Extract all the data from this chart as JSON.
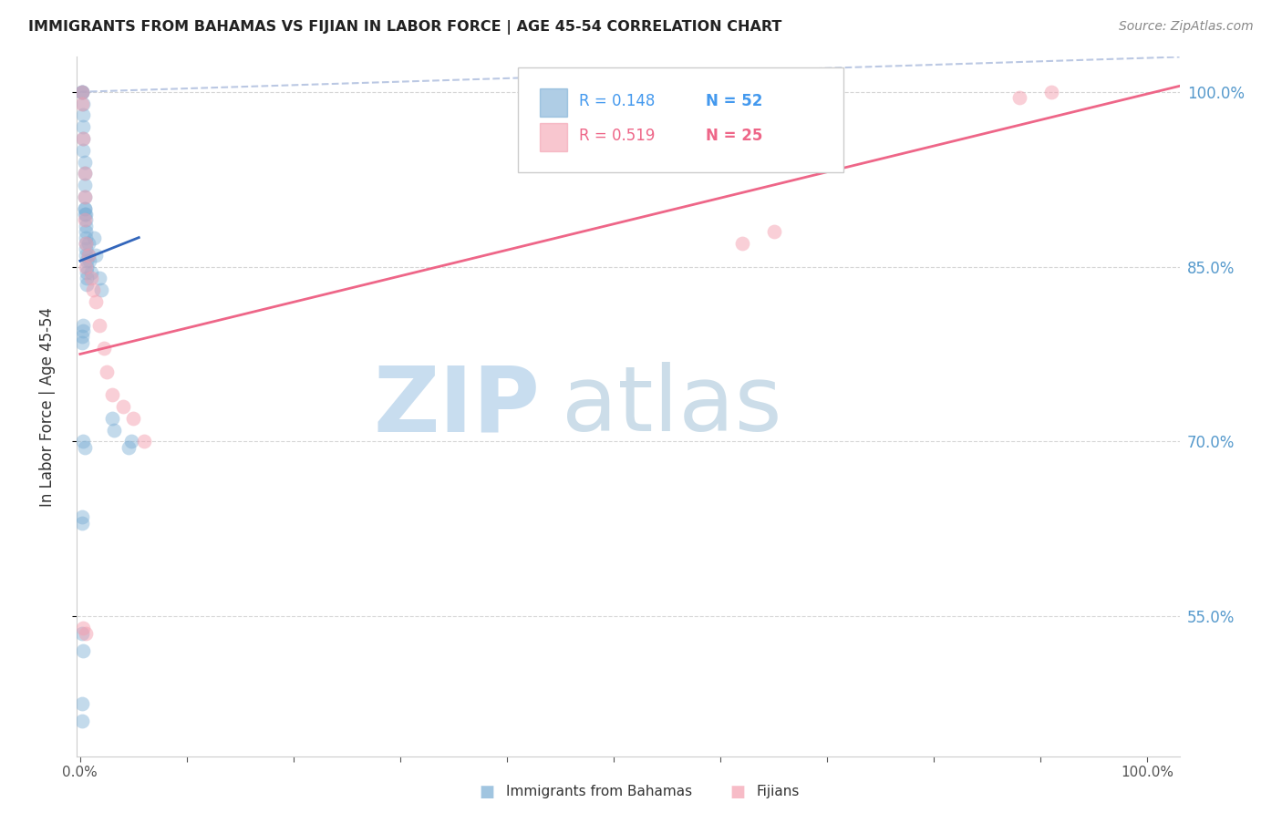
{
  "title": "IMMIGRANTS FROM BAHAMAS VS FIJIAN IN LABOR FORCE | AGE 45-54 CORRELATION CHART",
  "source": "Source: ZipAtlas.com",
  "ylabel": "In Labor Force | Age 45-54",
  "ytick_values": [
    1.0,
    0.85,
    0.7,
    0.55
  ],
  "ymin": 0.43,
  "ymax": 1.03,
  "xmin": -0.003,
  "xmax": 1.03,
  "legend_r_blue": "R = 0.148",
  "legend_n_blue": "N = 52",
  "legend_r_pink": "R = 0.519",
  "legend_n_pink": "N = 25",
  "blue_color": "#7AADD4",
  "pink_color": "#F4A0B0",
  "blue_line_color": "#3366BB",
  "pink_line_color": "#EE6688",
  "dashed_line_color": "#AABBDD",
  "legend_blue_text_color": "#4499EE",
  "legend_pink_text_color": "#EE6688",
  "background_color": "#FFFFFF",
  "grid_color": "#CCCCCC",
  "blue_scatter_x": [
    0.002,
    0.002,
    0.002,
    0.003,
    0.003,
    0.003,
    0.003,
    0.003,
    0.004,
    0.004,
    0.004,
    0.004,
    0.004,
    0.004,
    0.005,
    0.005,
    0.005,
    0.005,
    0.005,
    0.005,
    0.005,
    0.006,
    0.006,
    0.006,
    0.006,
    0.006,
    0.008,
    0.008,
    0.009,
    0.01,
    0.013,
    0.015,
    0.018,
    0.02,
    0.03,
    0.032,
    0.045,
    0.048,
    0.002,
    0.002,
    0.003,
    0.004,
    0.002,
    0.003,
    0.002,
    0.002,
    0.004,
    0.005,
    0.003,
    0.003,
    0.002,
    0.002
  ],
  "blue_scatter_y": [
    1.0,
    1.0,
    1.0,
    0.99,
    0.98,
    0.97,
    0.96,
    0.95,
    0.94,
    0.93,
    0.92,
    0.91,
    0.9,
    0.895,
    0.89,
    0.885,
    0.88,
    0.875,
    0.87,
    0.865,
    0.86,
    0.855,
    0.85,
    0.845,
    0.84,
    0.835,
    0.87,
    0.86,
    0.855,
    0.845,
    0.875,
    0.86,
    0.84,
    0.83,
    0.72,
    0.71,
    0.695,
    0.7,
    0.635,
    0.63,
    0.7,
    0.695,
    0.535,
    0.52,
    0.475,
    0.46,
    0.9,
    0.895,
    0.8,
    0.795,
    0.79,
    0.785
  ],
  "pink_scatter_x": [
    0.002,
    0.002,
    0.003,
    0.004,
    0.004,
    0.004,
    0.005,
    0.005,
    0.008,
    0.01,
    0.012,
    0.015,
    0.018,
    0.022,
    0.025,
    0.03,
    0.04,
    0.05,
    0.06,
    0.62,
    0.65,
    0.88,
    0.91,
    0.003,
    0.005
  ],
  "pink_scatter_y": [
    1.0,
    0.99,
    0.96,
    0.93,
    0.91,
    0.89,
    0.87,
    0.85,
    0.86,
    0.84,
    0.83,
    0.82,
    0.8,
    0.78,
    0.76,
    0.74,
    0.73,
    0.72,
    0.7,
    0.87,
    0.88,
    0.995,
    1.0,
    0.54,
    0.535
  ],
  "blue_trendline_x0": 0.0,
  "blue_trendline_x1": 0.055,
  "blue_trendline_y0": 0.855,
  "blue_trendline_y1": 0.875,
  "pink_trendline_x0": 0.0,
  "pink_trendline_x1": 1.03,
  "pink_trendline_y0": 0.775,
  "pink_trendline_y1": 1.005,
  "dash_line_x0": 0.0,
  "dash_line_x1": 1.03,
  "dash_line_y0": 1.0,
  "dash_line_y1": 1.03
}
